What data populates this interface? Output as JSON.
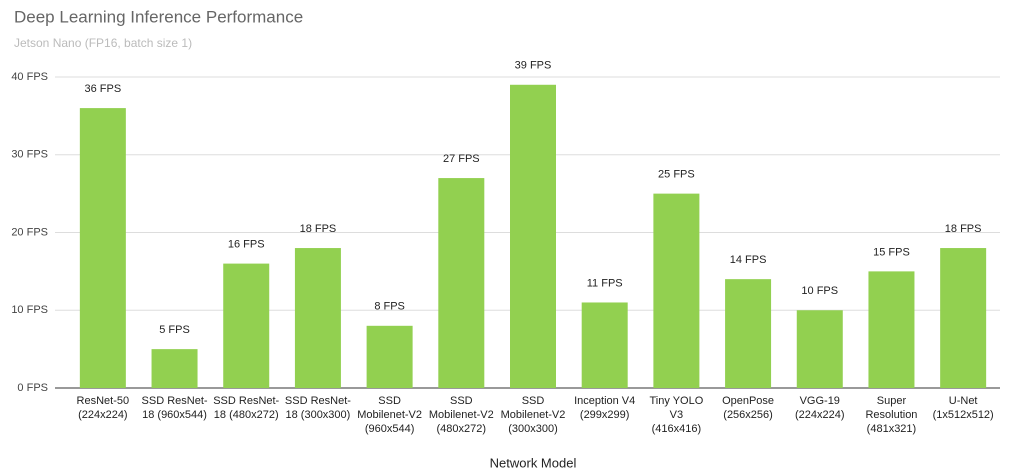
{
  "chart_data": {
    "type": "bar",
    "title": "Deep Learning Inference Performance",
    "subtitle": "Jetson Nano (FP16, batch size 1)",
    "x_label": "Network Model",
    "categories": [
      "ResNet-50\n(224x224)",
      "SSD ResNet-\n18 (960x544)",
      "SSD ResNet-\n18 (480x272)",
      "SSD ResNet-\n18 (300x300)",
      "SSD\nMobilenet-V2\n(960x544)",
      "SSD\nMobilenet-V2\n(480x272)",
      "SSD\nMobilenet-V2\n(300x300)",
      "Inception V4\n(299x299)",
      "Tiny YOLO\nV3\n(416x416)",
      "OpenPose\n(256x256)",
      "VGG-19\n(224x224)",
      "Super\nResolution\n(481x321)",
      "U-Net\n(1x512x512)"
    ],
    "values": [
      36,
      5,
      16,
      18,
      8,
      27,
      39,
      11,
      25,
      14,
      10,
      15,
      18
    ],
    "value_labels": [
      "36 FPS",
      "5 FPS",
      "16 FPS",
      "18 FPS",
      "8 FPS",
      "27 FPS",
      "39 FPS",
      "11 FPS",
      "25 FPS",
      "14 FPS",
      "10 FPS",
      "15 FPS",
      "18 FPS"
    ],
    "color": "#92d050",
    "ylim": [
      0,
      40
    ],
    "yticks": [
      {
        "value": 0,
        "label": "0 FPS"
      },
      {
        "value": 10,
        "label": "10 FPS"
      },
      {
        "value": 20,
        "label": "20 FPS"
      },
      {
        "value": 30,
        "label": "30 FPS"
      },
      {
        "value": 40,
        "label": "40 FPS"
      }
    ],
    "grid": true
  }
}
